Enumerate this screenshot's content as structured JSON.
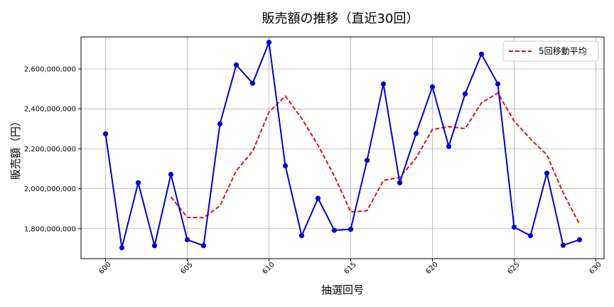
{
  "chart_data": {
    "type": "line",
    "title": "販売額の推移（直近30回）",
    "xlabel": "抽選回号",
    "ylabel": "販売額（円）",
    "xlim": [
      598.5,
      630.5
    ],
    "ylim": [
      1650000000,
      2760000000
    ],
    "xticks": [
      600,
      605,
      610,
      615,
      620,
      625,
      630
    ],
    "yticks": [
      1800000000,
      2000000000,
      2200000000,
      2400000000,
      2600000000
    ],
    "ytick_labels": [
      "1,800,000,000",
      "2,000,000,000",
      "2,200,000,000",
      "2,400,000,000",
      "2,600,000,000"
    ],
    "grid": true,
    "legend_position": "top-right",
    "colors": {
      "sales": "#0000cc",
      "moving_average": "#dd1111"
    },
    "x": [
      600,
      601,
      602,
      603,
      604,
      605,
      606,
      607,
      608,
      609,
      610,
      611,
      612,
      613,
      614,
      615,
      616,
      617,
      618,
      619,
      620,
      621,
      622,
      623,
      624,
      625,
      626,
      627,
      628,
      629
    ],
    "series": [
      {
        "values": [
          2275000000,
          1705000000,
          2030000000,
          1715000000,
          2072000000,
          1745000000,
          1715000000,
          2325000000,
          2620000000,
          2528000000,
          2733000000,
          2115000000,
          1765000000,
          1952000000,
          1792000000,
          1797000000,
          2142000000,
          2525000000,
          2030000000,
          2277000000,
          2510000000,
          2212000000,
          2475000000,
          2674000000,
          2525000000,
          1808000000,
          1765000000,
          2078000000,
          1717000000,
          1745000000
        ]
      },
      {
        "name": "5回移動平均",
        "style": "dashed",
        "x": [
          604,
          605,
          606,
          607,
          608,
          609,
          610,
          611,
          612,
          613,
          614,
          615,
          616,
          617,
          618,
          619,
          620,
          621,
          622,
          623,
          624,
          625,
          626,
          627,
          628,
          629
        ],
        "values": [
          1959000000,
          1857000000,
          1855000000,
          1914000000,
          2091000000,
          2187000000,
          2384000000,
          2464000000,
          2352000000,
          2218000000,
          2064000000,
          1884000000,
          1890000000,
          2042000000,
          2057000000,
          2154000000,
          2297000000,
          2311000000,
          2301000000,
          2430000000,
          2479000000,
          2339000000,
          2249000000,
          2170000000,
          1979000000,
          1823000000
        ]
      }
    ]
  }
}
